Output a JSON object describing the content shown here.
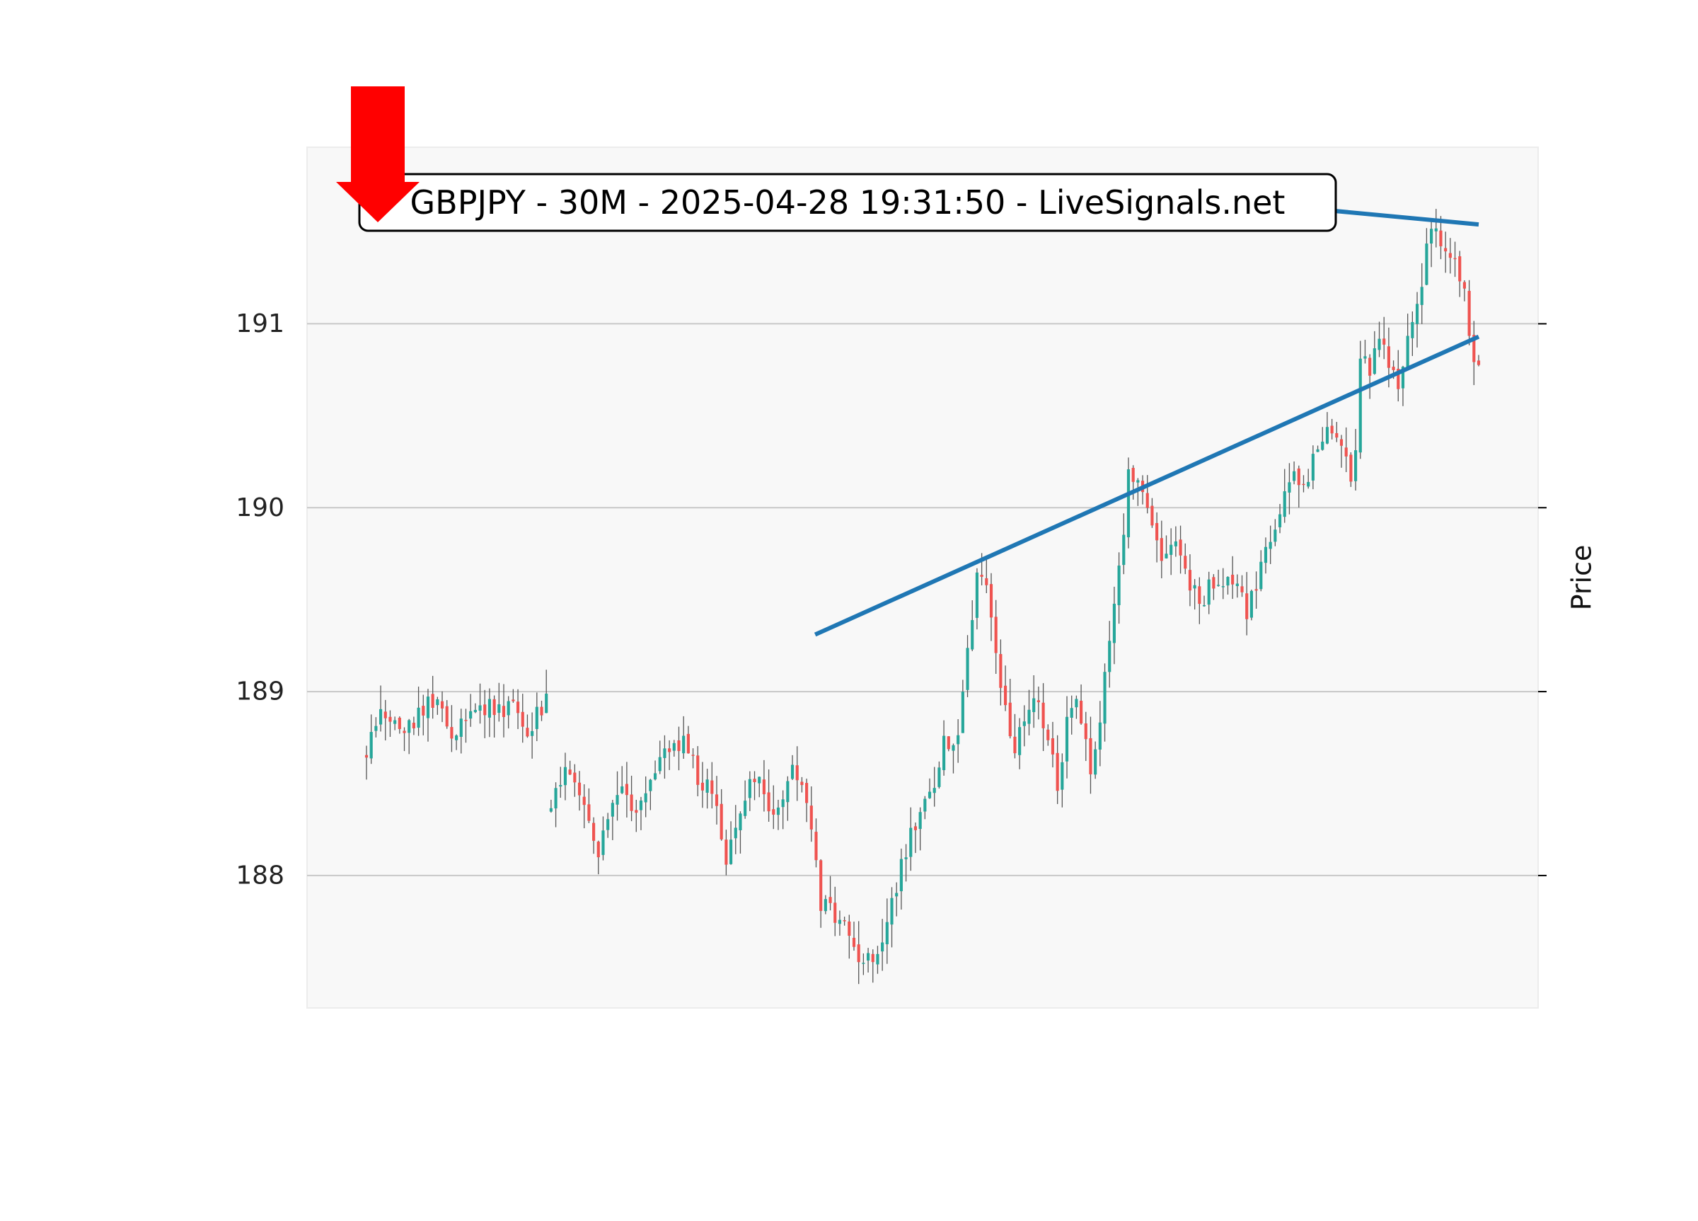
{
  "chart_data": {
    "type": "candlestick",
    "title": "GBPJPY - 30M - 2025-04-28 19:31:50 - LiveSignals.net",
    "ylabel": "Price",
    "xlabel": "",
    "ylim": [
      187.28,
      191.96
    ],
    "yticks": [
      188,
      189,
      190,
      191
    ],
    "grid": "horizontal",
    "candle_count": 235,
    "segments": [
      {
        "start": 0,
        "end": 38,
        "anchors": [
          [
            0,
            188.66
          ],
          [
            3,
            188.95
          ],
          [
            6,
            188.8
          ],
          [
            10,
            188.85
          ],
          [
            14,
            188.95
          ],
          [
            18,
            188.8
          ],
          [
            22,
            188.85
          ],
          [
            26,
            188.9
          ],
          [
            30,
            188.92
          ],
          [
            34,
            188.8
          ],
          [
            38,
            188.95
          ]
        ]
      },
      {
        "start": 39,
        "end": 235,
        "anchors": [
          [
            39,
            188.35
          ],
          [
            42,
            188.55
          ],
          [
            46,
            188.4
          ],
          [
            49,
            188.1
          ],
          [
            51,
            188.35
          ],
          [
            54,
            188.45
          ],
          [
            57,
            188.35
          ],
          [
            60,
            188.55
          ],
          [
            63,
            188.65
          ],
          [
            67,
            188.75
          ],
          [
            70,
            188.55
          ],
          [
            73,
            188.45
          ],
          [
            76,
            188.1
          ],
          [
            79,
            188.3
          ],
          [
            82,
            188.55
          ],
          [
            85,
            188.35
          ],
          [
            88,
            188.45
          ],
          [
            90,
            188.6
          ],
          [
            93,
            188.4
          ],
          [
            95,
            188.1
          ],
          [
            96,
            187.85
          ],
          [
            99,
            187.8
          ],
          [
            102,
            187.65
          ],
          [
            105,
            187.55
          ],
          [
            107,
            187.5
          ],
          [
            110,
            187.75
          ],
          [
            113,
            188.05
          ],
          [
            116,
            188.3
          ],
          [
            119,
            188.4
          ],
          [
            122,
            188.7
          ],
          [
            125,
            188.8
          ],
          [
            127,
            189.25
          ],
          [
            129,
            189.6
          ],
          [
            131,
            189.55
          ],
          [
            133,
            189.25
          ],
          [
            135,
            188.9
          ],
          [
            137,
            188.7
          ],
          [
            139,
            188.85
          ],
          [
            141,
            188.95
          ],
          [
            143,
            188.85
          ],
          [
            145,
            188.7
          ],
          [
            146,
            188.45
          ],
          [
            148,
            188.85
          ],
          [
            150,
            188.95
          ],
          [
            152,
            188.8
          ],
          [
            153,
            188.55
          ],
          [
            155,
            188.8
          ],
          [
            156,
            189.15
          ],
          [
            158,
            189.5
          ],
          [
            159,
            189.65
          ],
          [
            160,
            189.9
          ],
          [
            161,
            190.15
          ],
          [
            163,
            190.2
          ],
          [
            165,
            190.05
          ],
          [
            167,
            189.8
          ],
          [
            168,
            189.7
          ],
          [
            170,
            189.85
          ],
          [
            172,
            189.75
          ],
          [
            174,
            189.6
          ],
          [
            176,
            189.5
          ],
          [
            178,
            189.55
          ],
          [
            180,
            189.6
          ],
          [
            182,
            189.65
          ],
          [
            184,
            189.55
          ],
          [
            186,
            189.45
          ],
          [
            188,
            189.6
          ],
          [
            190,
            189.75
          ],
          [
            192,
            189.9
          ],
          [
            194,
            190.1
          ],
          [
            196,
            190.2
          ],
          [
            198,
            190.1
          ],
          [
            200,
            190.25
          ],
          [
            202,
            190.35
          ],
          [
            204,
            190.45
          ],
          [
            206,
            190.35
          ],
          [
            208,
            190.2
          ],
          [
            209,
            190.3
          ],
          [
            210,
            190.85
          ],
          [
            212,
            190.75
          ],
          [
            214,
            190.95
          ],
          [
            216,
            190.8
          ],
          [
            218,
            190.7
          ],
          [
            220,
            190.9
          ],
          [
            222,
            191.05
          ],
          [
            224,
            191.45
          ],
          [
            226,
            191.55
          ],
          [
            228,
            191.4
          ],
          [
            230,
            191.35
          ],
          [
            232,
            191.2
          ],
          [
            233,
            190.95
          ],
          [
            234,
            190.85
          ],
          [
            235,
            190.8
          ]
        ]
      }
    ],
    "trendlines": [
      {
        "name": "support",
        "x": [
          94.8,
          235
        ],
        "y": [
          189.31,
          190.93
        ],
        "color": "#1f77b4"
      },
      {
        "name": "resistance",
        "x": [
          202,
          235
        ],
        "y": [
          191.62,
          191.54
        ],
        "color": "#1f77b4"
      }
    ],
    "signal": {
      "direction": "down",
      "color": "#ff0000"
    },
    "colors": {
      "up": "#26a69a",
      "down": "#ef5350",
      "wick": "#555555",
      "plot_bg": "#f8f8f8",
      "grid": "#c8c8c8",
      "trendline": "#1f77b4",
      "arrow": "#ff0000"
    }
  }
}
